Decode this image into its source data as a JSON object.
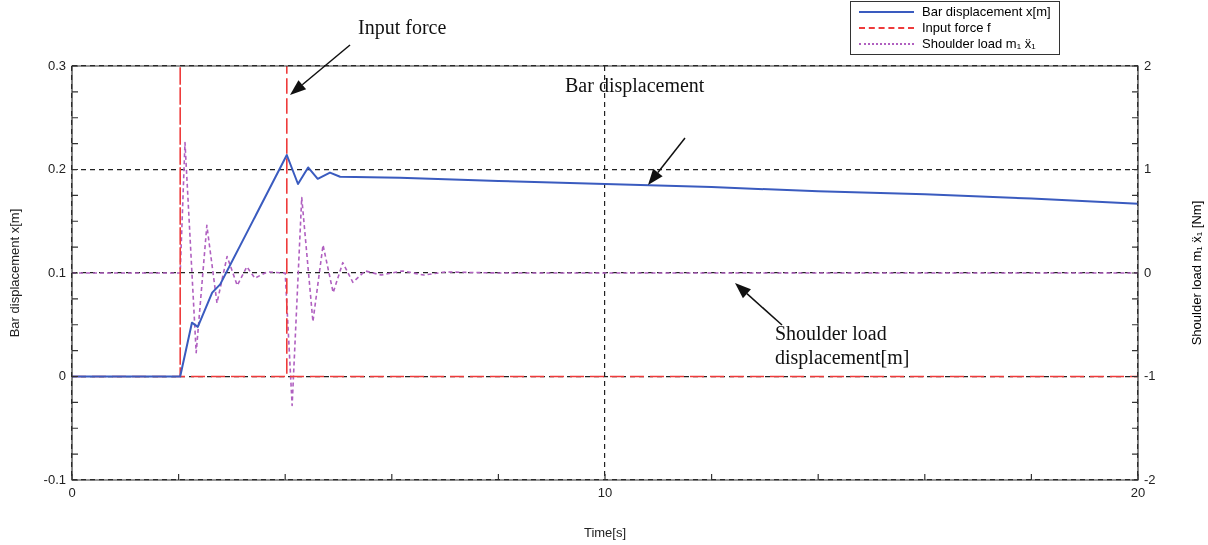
{
  "chart_data": {
    "type": "line",
    "xlabel": "Time[s]",
    "ylabel": "Bar displacement x[m]",
    "y2label": "Shoulder load   m₁ ẍ₁ [Nm]",
    "xlim": [
      0,
      20
    ],
    "xticks": [
      0,
      {
        "value": 2,
        "label": null
      },
      {
        "value": 4,
        "label": null
      },
      {
        "value": 6,
        "label": null
      },
      {
        "value": 8,
        "label": null
      },
      10,
      {
        "value": 12,
        "label": null
      },
      {
        "value": 14,
        "label": null
      },
      {
        "value": 16,
        "label": null
      },
      {
        "value": 18,
        "label": null
      },
      20
    ],
    "ylim": [
      -0.1,
      0.3
    ],
    "yticks": [
      -0.1,
      {
        "value": -0.075,
        "label": null
      },
      {
        "value": -0.05,
        "label": null
      },
      {
        "value": -0.025,
        "label": null
      },
      0,
      {
        "value": 0.025,
        "label": null
      },
      {
        "value": 0.05,
        "label": null
      },
      {
        "value": 0.075,
        "label": null
      },
      0.1,
      {
        "value": 0.125,
        "label": null
      },
      {
        "value": 0.15,
        "label": null
      },
      {
        "value": 0.175,
        "label": null
      },
      0.2,
      {
        "value": 0.225,
        "label": null
      },
      {
        "value": 0.25,
        "label": null
      },
      {
        "value": 0.275,
        "label": null
      },
      0.3
    ],
    "y2lim": [
      -2,
      2
    ],
    "y2ticks": [
      -2,
      {
        "value": -1.75,
        "label": null
      },
      {
        "value": -1.5,
        "label": null
      },
      {
        "value": -1.25,
        "label": null
      },
      -1,
      {
        "value": -0.75,
        "label": null
      },
      {
        "value": -0.5,
        "label": null
      },
      {
        "value": -0.25,
        "label": null
      },
      0,
      {
        "value": 0.25,
        "label": null
      },
      {
        "value": 0.5,
        "label": null
      },
      {
        "value": 0.75,
        "label": null
      },
      1,
      {
        "value": 1.25,
        "label": null
      },
      {
        "value": 1.5,
        "label": null
      },
      {
        "value": 1.75,
        "label": null
      },
      2
    ],
    "grid": true,
    "legend": "top right",
    "marker": "none",
    "series": [
      {
        "name": "Bar displacement x[m]",
        "color": "#3a5bbf",
        "line_style": "solid",
        "x": [
          0,
          2.03,
          2.25,
          2.36,
          2.63,
          2.78,
          3.15,
          4.03,
          4.24,
          4.43,
          4.61,
          4.84,
          5.03,
          6.15,
          8,
          10,
          12,
          14,
          16,
          18,
          20
        ],
        "values": [
          0,
          0,
          0.052,
          0.048,
          0.081,
          0.089,
          0.126,
          0.214,
          0.186,
          0.202,
          0.191,
          0.197,
          0.193,
          0.192,
          0.189,
          0.186,
          0.183,
          0.179,
          0.176,
          0.172,
          0.167
        ]
      },
      {
        "name": "Input force f",
        "color": "#ee3b3b",
        "line_style": "dashed",
        "x": [
          0,
          2.03,
          2.03,
          2.03,
          4.03,
          4.03,
          4.03,
          20
        ],
        "values": [
          0,
          0,
          0.3,
          0,
          0,
          0.3,
          0,
          0
        ]
      },
      {
        "name": "Shoulder load  m₁ ẍ₁",
        "color": "#b060c0",
        "line_style": "dotted",
        "axis": "y2",
        "x": [
          0,
          2.03,
          2.12,
          2.33,
          2.53,
          2.72,
          2.91,
          3.1,
          3.28,
          3.43,
          3.66,
          4.0,
          4.13,
          4.31,
          4.52,
          4.71,
          4.9,
          5.08,
          5.27,
          5.5,
          5.8,
          6.2,
          6.6,
          7.0,
          8,
          20
        ],
        "values": [
          0,
          0,
          1.26,
          -0.77,
          0.46,
          -0.29,
          0.16,
          -0.12,
          0.06,
          -0.05,
          0.01,
          0,
          -1.28,
          0.73,
          -0.47,
          0.27,
          -0.19,
          0.1,
          -0.09,
          0.02,
          -0.02,
          0.02,
          -0.02,
          0.01,
          0,
          0
        ]
      }
    ],
    "annotations": [
      "Input force",
      "Bar displacement",
      "Shoulder load displacement[m]"
    ]
  }
}
